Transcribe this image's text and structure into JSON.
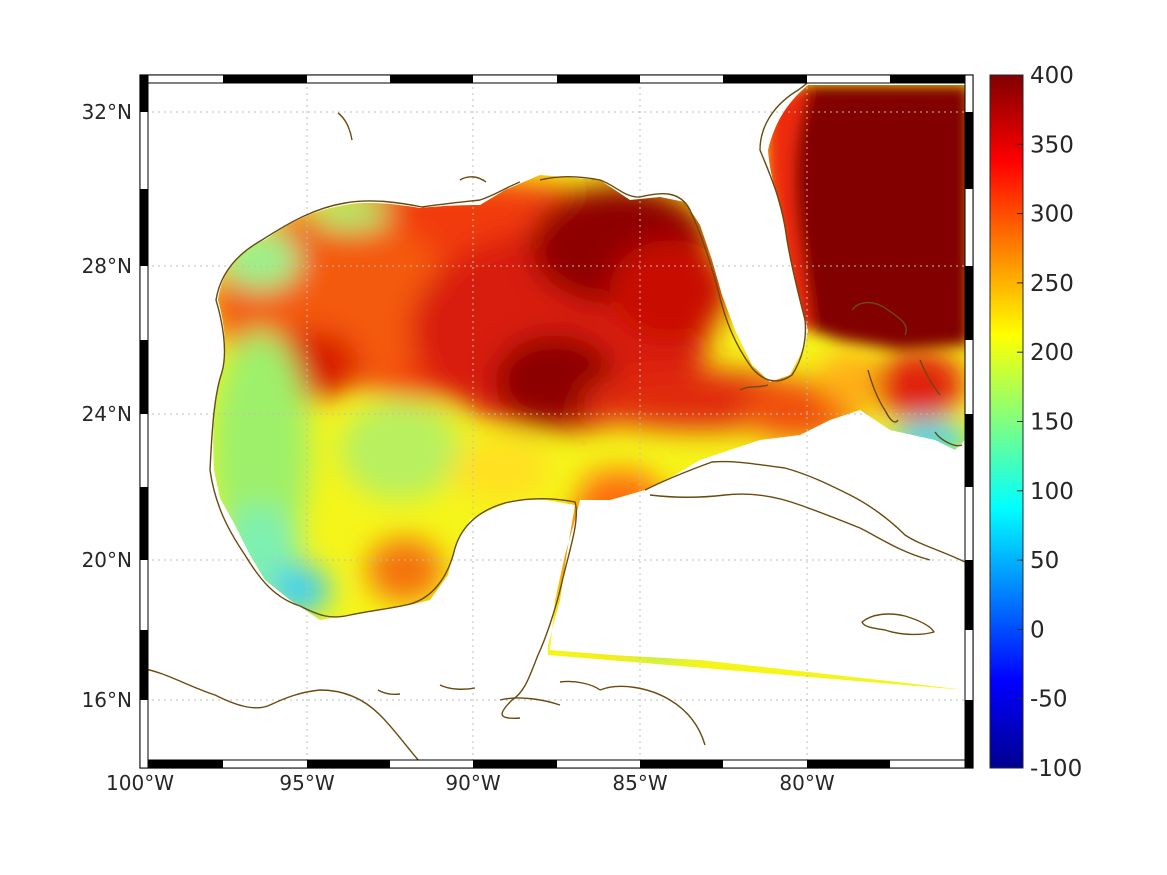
{
  "map": {
    "lon_range": [
      -100,
      -75
    ],
    "lat_range": [
      14.2,
      33
    ],
    "projection": "mercator",
    "grid": true,
    "lon_ticks": [
      {
        "value": -100,
        "label": "100°W"
      },
      {
        "value": -95,
        "label": "95°W"
      },
      {
        "value": -90,
        "label": "90°W"
      },
      {
        "value": -85,
        "label": "85°W"
      },
      {
        "value": -80,
        "label": "80°W"
      }
    ],
    "lat_ticks": [
      {
        "value": 32,
        "label": "32°N"
      },
      {
        "value": 28,
        "label": "28°N"
      },
      {
        "value": 24,
        "label": "24°N"
      },
      {
        "value": 20,
        "label": "20°N"
      },
      {
        "value": 16,
        "label": "16°N"
      }
    ],
    "colors": {
      "coastline": "#6b4a10",
      "land": "#ffffff",
      "frame_dark": "#000000",
      "frame_light": "#ffffff"
    }
  },
  "colorbar": {
    "colormap": "jet",
    "range": [
      -100,
      400
    ],
    "ticks": [
      "400",
      "350",
      "300",
      "250",
      "200",
      "150",
      "100",
      "50",
      "0",
      "-50",
      "-100"
    ]
  }
}
